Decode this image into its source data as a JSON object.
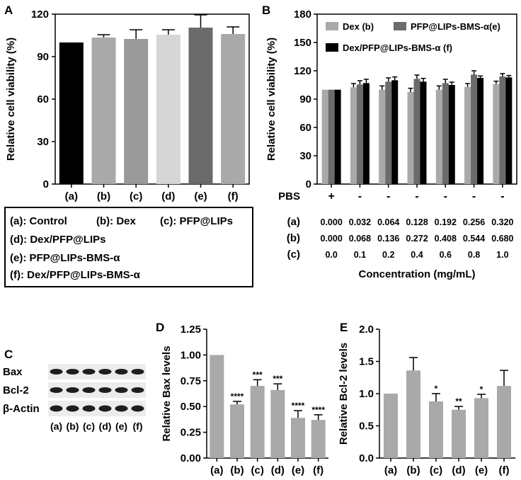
{
  "chart_data": [
    {
      "panel": "A",
      "type": "bar",
      "ylabel": "Relative cell viability (%)",
      "categories": [
        "(a)",
        "(b)",
        "(c)",
        "(d)",
        "(e)",
        "(f)"
      ],
      "values": [
        100,
        103.5,
        102.5,
        105.5,
        110.5,
        106
      ],
      "errors": [
        0,
        2,
        6.5,
        3.5,
        9,
        5
      ],
      "colors": [
        "#000000",
        "#a9a9a9",
        "#9a9a9a",
        "#d6d6d6",
        "#6b6b6b",
        "#a9a9a9"
      ],
      "ylim": [
        0,
        120
      ],
      "yticks": [
        0,
        30,
        60,
        90,
        120
      ],
      "legend_title": "",
      "legend": [
        "(a): Control",
        "(b): Dex",
        "(c): PFP@LIPs",
        "(d): Dex/PFP@LIPs",
        "(e): PFP@LIPs-BMS-α",
        "(f): Dex/PFP@LIPs-BMS-α"
      ]
    },
    {
      "panel": "B",
      "type": "bar",
      "ylabel": "Relative cell viability (%)",
      "xlabel": "Concentration (mg/mL)",
      "ylim": [
        0,
        180
      ],
      "yticks": [
        0,
        30,
        60,
        90,
        120,
        150,
        180
      ],
      "groups": 7,
      "series": [
        {
          "name": "Dex (b)",
          "color": "#a9a9a9",
          "values": [
            100,
            102.5,
            100,
            97.5,
            100,
            103,
            106
          ],
          "errors": [
            0,
            4,
            4,
            4,
            4,
            3.5,
            3
          ]
        },
        {
          "name": "PFP@LIPs-BMS-α(e)",
          "color": "#6b6b6b",
          "values": [
            100,
            105.5,
            108.5,
            111.5,
            107,
            116,
            114
          ],
          "errors": [
            0,
            4,
            4,
            4,
            4,
            4,
            3
          ]
        },
        {
          "name": "Dex/PFP@LIPs-BMS-α (f)",
          "color": "#000000",
          "values": [
            100,
            107,
            110,
            108.5,
            105,
            112.5,
            113
          ],
          "errors": [
            0,
            4,
            3.5,
            3.5,
            3,
            2,
            2
          ]
        }
      ],
      "table_rows": [
        {
          "label": "PBS",
          "cells": [
            "+",
            "-",
            "-",
            "-",
            "-",
            "-",
            "-"
          ]
        },
        {
          "label": "(a)",
          "cells": [
            "0.000",
            "0.032",
            "0.064",
            "0.128",
            "0.192",
            "0.256",
            "0.320"
          ]
        },
        {
          "label": "(b)",
          "cells": [
            "0.000",
            "0.068",
            "0.136",
            "0.272",
            "0.408",
            "0.544",
            "0.680"
          ]
        },
        {
          "label": "(c)",
          "cells": [
            "0.0",
            "0.1",
            "0.2",
            "0.4",
            "0.6",
            "0.8",
            "1.0"
          ]
        }
      ]
    },
    {
      "panel": "C",
      "type": "table",
      "row_labels": [
        "Bax",
        "Bcl-2",
        "β-Actin"
      ],
      "lane_labels": [
        "(a)",
        "(b)",
        "(c)",
        "(d)",
        "(e)",
        "(f)"
      ]
    },
    {
      "panel": "D",
      "type": "bar",
      "ylabel": "Relative Bax levels",
      "categories": [
        "(a)",
        "(b)",
        "(c)",
        "(d)",
        "(e)",
        "(f)"
      ],
      "values": [
        1.0,
        0.52,
        0.7,
        0.66,
        0.39,
        0.37
      ],
      "errors": [
        0,
        0.03,
        0.06,
        0.06,
        0.07,
        0.05
      ],
      "significance": [
        "",
        "****",
        "***",
        "***",
        "****",
        "****"
      ],
      "ylim": [
        0,
        1.25
      ],
      "yticks": [
        "0.00",
        "0.25",
        "0.50",
        "0.75",
        "1.00",
        "1.25"
      ],
      "color": "#a9a9a9"
    },
    {
      "panel": "E",
      "type": "bar",
      "ylabel": "Relative Bcl-2 levels",
      "categories": [
        "(a)",
        "(b)",
        "(c)",
        "(d)",
        "(e)",
        "(f)"
      ],
      "values": [
        1.0,
        1.36,
        0.88,
        0.75,
        0.93,
        1.12
      ],
      "errors": [
        0,
        0.2,
        0.12,
        0.05,
        0.06,
        0.24
      ],
      "significance": [
        "",
        "",
        "*",
        "**",
        "*",
        ""
      ],
      "ylim": [
        0,
        2.0
      ],
      "yticks": [
        "0.0",
        "0.5",
        "1.0",
        "1.5",
        "2.0"
      ],
      "color": "#a9a9a9"
    }
  ],
  "panel_labels": [
    "A",
    "B",
    "C",
    "D",
    "E"
  ]
}
